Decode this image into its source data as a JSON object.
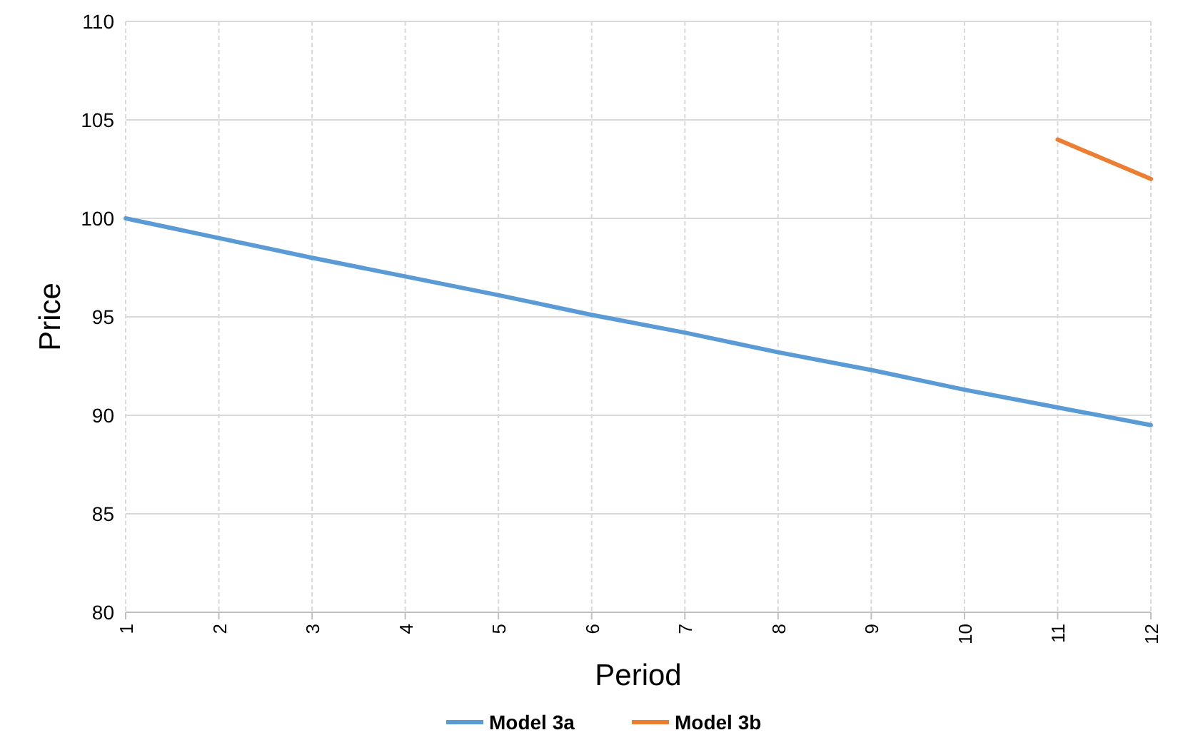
{
  "chart_data": {
    "type": "line",
    "xlabel": "Period",
    "ylabel": "Price",
    "x": [
      1,
      2,
      3,
      4,
      5,
      6,
      7,
      8,
      9,
      10,
      11,
      12
    ],
    "xlim": [
      1,
      12
    ],
    "xticks": [
      1,
      2,
      3,
      4,
      5,
      6,
      7,
      8,
      9,
      10,
      11,
      12
    ],
    "ylim": [
      80,
      110
    ],
    "yticks": [
      80,
      85,
      90,
      95,
      100,
      105,
      110
    ],
    "grid": true,
    "legend": "bottom",
    "line_style": "solid",
    "marker": "none",
    "series": [
      {
        "name": "Model 3a",
        "color": "#5b9bd5",
        "values": [
          100,
          99,
          98,
          97.05,
          96.1,
          95.1,
          94.2,
          93.2,
          92.3,
          91.3,
          90.4,
          89.5
        ]
      },
      {
        "name": "Model 3b",
        "color": "#ed7d31",
        "values": [
          null,
          null,
          null,
          null,
          null,
          null,
          null,
          null,
          null,
          null,
          104,
          102
        ]
      }
    ]
  }
}
